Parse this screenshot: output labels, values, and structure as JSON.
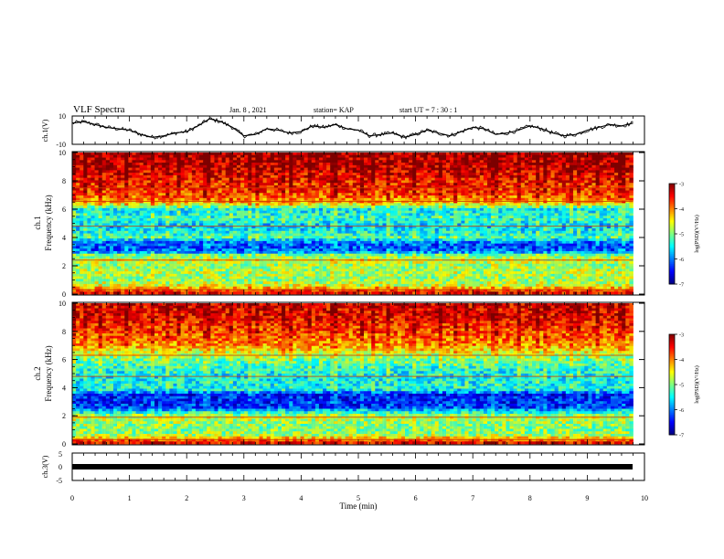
{
  "header": {
    "title": "VLF Spectra",
    "date": "Jan. 8 , 2021",
    "station": "station= KAP",
    "start_ut": "start UT =  7 : 30 : 1"
  },
  "chart_data": [
    {
      "id": "ch1-waveform",
      "type": "line",
      "ylabel": "ch.1(V)",
      "ylim": [
        -10,
        10
      ],
      "yticks": [
        "10",
        "-10"
      ],
      "x_range_min": [
        0,
        9.8
      ],
      "series": [
        {
          "color": "#000000",
          "x": [
            0,
            0.2,
            0.4,
            0.6,
            0.8,
            1.0,
            1.2,
            1.4,
            1.6,
            1.8,
            2.0,
            2.2,
            2.4,
            2.6,
            2.8,
            3.0,
            3.2,
            3.4,
            3.6,
            3.8,
            4.0,
            4.2,
            4.4,
            4.6,
            4.8,
            5.0,
            5.2,
            5.4,
            5.6,
            5.8,
            6.0,
            6.2,
            6.4,
            6.6,
            6.8,
            7.0,
            7.2,
            7.4,
            7.6,
            7.8,
            8.0,
            8.2,
            8.4,
            8.6,
            8.8,
            9.0,
            9.2,
            9.4,
            9.6,
            9.8
          ],
          "values": [
            5,
            6,
            4,
            2,
            1,
            0,
            -3,
            -5,
            -4,
            -2,
            -1,
            3,
            8,
            6,
            2,
            -4,
            -3,
            1,
            0,
            -2,
            -1,
            3,
            2,
            4,
            1,
            0,
            -4,
            -3,
            -2,
            -5,
            -3,
            0,
            -2,
            -4,
            -1,
            2,
            1,
            -3,
            -2,
            0,
            3,
            1,
            -2,
            -4,
            -3,
            0,
            2,
            4,
            3,
            5
          ]
        }
      ]
    },
    {
      "id": "ch1-spectrogram",
      "type": "heatmap",
      "ylabel": "ch.1\nFrequency (kHz)",
      "ylim": [
        0,
        10
      ],
      "yticks": [
        "0",
        "2",
        "4",
        "6",
        "8",
        "10"
      ],
      "colorbar": {
        "label": "log(PSD)(V²/Hz)",
        "range": [
          -7,
          -3
        ],
        "ticks": [
          "-3",
          "-4",
          "-5",
          "-6",
          "-7"
        ]
      },
      "freq_profile_khz": [
        [
          0,
          -3.4
        ],
        [
          0.3,
          -3.8
        ],
        [
          0.6,
          -4.6
        ],
        [
          1.0,
          -4.9
        ],
        [
          1.5,
          -4.8
        ],
        [
          2.0,
          -4.9
        ],
        [
          2.4,
          -4.6
        ],
        [
          2.8,
          -5.1
        ],
        [
          3.0,
          -6.1
        ],
        [
          3.6,
          -6.2
        ],
        [
          4.0,
          -5.2
        ],
        [
          4.8,
          -5.7
        ],
        [
          5.3,
          -5.3
        ],
        [
          6.0,
          -5.5
        ],
        [
          6.5,
          -4.2
        ],
        [
          7.0,
          -3.8
        ],
        [
          8.0,
          -3.6
        ],
        [
          9.0,
          -3.3
        ],
        [
          10.0,
          -3.2
        ]
      ],
      "lines_khz": [
        0.3,
        2.4,
        4.8,
        6.55,
        7.5
      ]
    },
    {
      "id": "ch2-spectrogram",
      "type": "heatmap",
      "ylabel": "ch.2\nFrequency (kHz)",
      "ylim": [
        0,
        10
      ],
      "yticks": [
        "0",
        "2",
        "4",
        "6",
        "8",
        "10"
      ],
      "colorbar": {
        "label": "log(PSD)(V²/Hz)",
        "range": [
          -7,
          -3
        ],
        "ticks": [
          "-3",
          "-4",
          "-5",
          "-6",
          "-7"
        ]
      },
      "freq_profile_khz": [
        [
          0,
          -3.3
        ],
        [
          0.3,
          -3.9
        ],
        [
          0.6,
          -4.8
        ],
        [
          1.0,
          -5.0
        ],
        [
          1.5,
          -4.9
        ],
        [
          1.9,
          -4.7
        ],
        [
          2.3,
          -5.5
        ],
        [
          2.6,
          -6.3
        ],
        [
          3.5,
          -6.4
        ],
        [
          3.9,
          -5.4
        ],
        [
          4.8,
          -5.5
        ],
        [
          5.5,
          -5.3
        ],
        [
          6.2,
          -4.9
        ],
        [
          7.0,
          -4.1
        ],
        [
          8.0,
          -3.8
        ],
        [
          9.0,
          -3.5
        ],
        [
          10.0,
          -3.4
        ]
      ],
      "lines_khz": [
        0.3,
        1.9,
        4.8,
        6.3
      ]
    },
    {
      "id": "ch3-waveform",
      "type": "line",
      "ylabel": "ch.3(V)",
      "ylim": [
        -5,
        5
      ],
      "yticks": [
        "5",
        "0",
        "-5"
      ],
      "x_range_min": [
        0,
        9.8
      ],
      "series": [
        {
          "color": "#000000",
          "x": [
            0,
            9.8
          ],
          "values": [
            0,
            0
          ]
        }
      ]
    }
  ],
  "xaxis": {
    "label": "Time (min)",
    "range": [
      0,
      10
    ],
    "ticks": [
      "0",
      "1",
      "2",
      "3",
      "4",
      "5",
      "6",
      "7",
      "8",
      "9",
      "10"
    ]
  }
}
